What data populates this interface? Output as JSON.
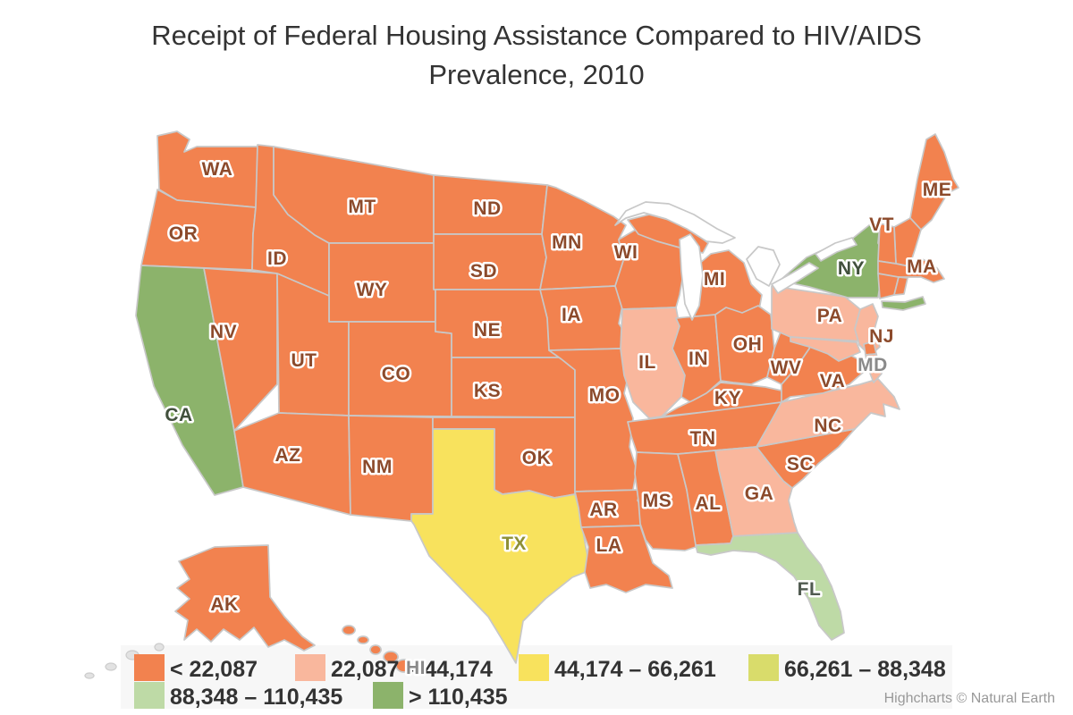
{
  "title": {
    "line1": "Receipt of Federal Housing Assistance Compared to HIV/AIDS",
    "line2": "Prevalence, 2010"
  },
  "credit": "Highcharts © Natural Earth",
  "colors": {
    "background": "#ffffff",
    "legend_background": "#f7f7f7",
    "state_border": "#c8c8c8",
    "title_text": "#333333",
    "legend_text": "#333333",
    "credit_text": "#999999",
    "default_label": "#8C4A2B"
  },
  "chart_data": {
    "type": "choropleth-map",
    "title": "Receipt of Federal Housing Assistance Compared to HIV/AIDS Prevalence, 2010",
    "legend_position": "bottom",
    "classes": [
      {
        "label": "< 22,087",
        "color": "#F2824F"
      },
      {
        "label": "22,087 – 44,174",
        "color": "#F9B79D"
      },
      {
        "label": "44,174 – 66,261",
        "color": "#F8E25D"
      },
      {
        "label": "66,261 – 88,348",
        "color": "#D9DC6B"
      },
      {
        "label": "88,348 – 110,435",
        "color": "#BEDAA6"
      },
      {
        "label": "> 110,435",
        "color": "#8CB36B"
      }
    ],
    "states": [
      {
        "code": "WA",
        "class": 0,
        "label": "WA"
      },
      {
        "code": "OR",
        "class": 0,
        "label": "OR"
      },
      {
        "code": "CA",
        "class": 5,
        "label": "CA",
        "label_color": "#41503C"
      },
      {
        "code": "NV",
        "class": 0,
        "label": "NV"
      },
      {
        "code": "ID",
        "class": 0,
        "label": "ID"
      },
      {
        "code": "MT",
        "class": 0,
        "label": "MT"
      },
      {
        "code": "WY",
        "class": 0,
        "label": "WY"
      },
      {
        "code": "UT",
        "class": 0,
        "label": "UT"
      },
      {
        "code": "CO",
        "class": 0,
        "label": "CO"
      },
      {
        "code": "AZ",
        "class": 0,
        "label": "AZ"
      },
      {
        "code": "NM",
        "class": 0,
        "label": "NM"
      },
      {
        "code": "ND",
        "class": 0,
        "label": "ND"
      },
      {
        "code": "SD",
        "class": 0,
        "label": "SD"
      },
      {
        "code": "NE",
        "class": 0,
        "label": "NE"
      },
      {
        "code": "KS",
        "class": 0,
        "label": "KS"
      },
      {
        "code": "OK",
        "class": 0,
        "label": "OK"
      },
      {
        "code": "TX",
        "class": 2,
        "label": "TX",
        "label_color": "#8E8F35"
      },
      {
        "code": "MN",
        "class": 0,
        "label": "MN"
      },
      {
        "code": "IA",
        "class": 0,
        "label": "IA"
      },
      {
        "code": "MO",
        "class": 0,
        "label": "MO"
      },
      {
        "code": "AR",
        "class": 0,
        "label": "AR"
      },
      {
        "code": "LA",
        "class": 0,
        "label": "LA"
      },
      {
        "code": "WI",
        "class": 0,
        "label": "WI"
      },
      {
        "code": "MIU",
        "class": 0,
        "label": null
      },
      {
        "code": "MI",
        "class": 0,
        "label": "MI"
      },
      {
        "code": "IL",
        "class": 1,
        "label": "IL"
      },
      {
        "code": "IN",
        "class": 0,
        "label": "IN"
      },
      {
        "code": "OH",
        "class": 0,
        "label": "OH"
      },
      {
        "code": "KY",
        "class": 0,
        "label": "KY"
      },
      {
        "code": "TN",
        "class": 0,
        "label": "TN"
      },
      {
        "code": "MS",
        "class": 0,
        "label": "MS"
      },
      {
        "code": "AL",
        "class": 0,
        "label": "AL"
      },
      {
        "code": "GA",
        "class": 1,
        "label": "GA"
      },
      {
        "code": "FL",
        "class": 4,
        "label": "FL",
        "label_color": "#505A50"
      },
      {
        "code": "SC",
        "class": 0,
        "label": "SC"
      },
      {
        "code": "NC",
        "class": 1,
        "label": "NC"
      },
      {
        "code": "VA",
        "class": 0,
        "label": "VA"
      },
      {
        "code": "WV",
        "class": 0,
        "label": "WV"
      },
      {
        "code": "PA",
        "class": 1,
        "label": "PA"
      },
      {
        "code": "NY",
        "class": 5,
        "label": "NY",
        "label_color": "#41503C"
      },
      {
        "code": "NYLI",
        "class": 5,
        "label": null
      },
      {
        "code": "NJ",
        "class": 1,
        "label": "NJ"
      },
      {
        "code": "DE",
        "class": 0,
        "label": null
      },
      {
        "code": "MD",
        "class": 1,
        "label": "MD",
        "label_color": "#8A8A8A"
      },
      {
        "code": "MDE",
        "class": 1,
        "label": null
      },
      {
        "code": "ME",
        "class": 0,
        "label": "ME"
      },
      {
        "code": "NH",
        "class": 0,
        "label": null
      },
      {
        "code": "VT",
        "class": 0,
        "label": "VT"
      },
      {
        "code": "MA",
        "class": 0,
        "label": "MA"
      },
      {
        "code": "CT",
        "class": 0,
        "label": null
      },
      {
        "code": "RI",
        "class": 0,
        "label": null
      },
      {
        "code": "AK",
        "class": 0,
        "label": "AK"
      },
      {
        "code": "HI",
        "class": 0,
        "label": "HI",
        "label_color": "#8A8A8A"
      }
    ]
  }
}
